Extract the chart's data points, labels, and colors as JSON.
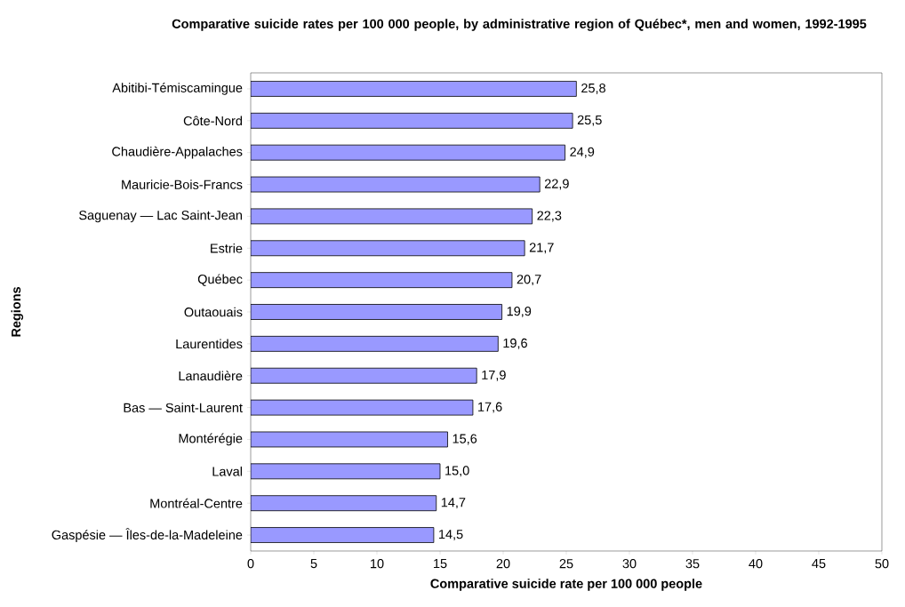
{
  "chart_data": {
    "type": "bar",
    "orientation": "horizontal",
    "title": "Comparative suicide rates per 100 000 people, by administrative region of Québec*, men and women, 1992-1995",
    "xlabel": "Comparative suicide rate per 100 000 people",
    "ylabel": "Regions",
    "categories": [
      "Abitibi-Témiscamingue",
      "Côte-Nord",
      "Chaudière-Appalaches",
      "Mauricie-Bois-Francs",
      "Saguenay — Lac Saint-Jean",
      "Estrie",
      "Québec",
      "Outaouais",
      "Laurentides",
      "Lanaudière",
      "Bas — Saint-Laurent",
      "Montérégie",
      "Laval",
      "Montréal-Centre",
      "Gaspésie — Îles-de-la-Madeleine"
    ],
    "values": [
      25.8,
      25.5,
      24.9,
      22.9,
      22.3,
      21.7,
      20.7,
      19.9,
      19.6,
      17.9,
      17.6,
      15.6,
      15.0,
      14.7,
      14.5
    ],
    "value_labels": [
      "25,8",
      "25,5",
      "24,9",
      "22,9",
      "22,3",
      "21,7",
      "20,7",
      "19,9",
      "19,6",
      "17,9",
      "17,6",
      "15,6",
      "15,0",
      "14,7",
      "14,5"
    ],
    "color": "#9999ff",
    "xlim": [
      0,
      50
    ],
    "xticks": [
      0,
      5,
      10,
      15,
      20,
      25,
      30,
      35,
      40,
      45,
      50
    ]
  }
}
